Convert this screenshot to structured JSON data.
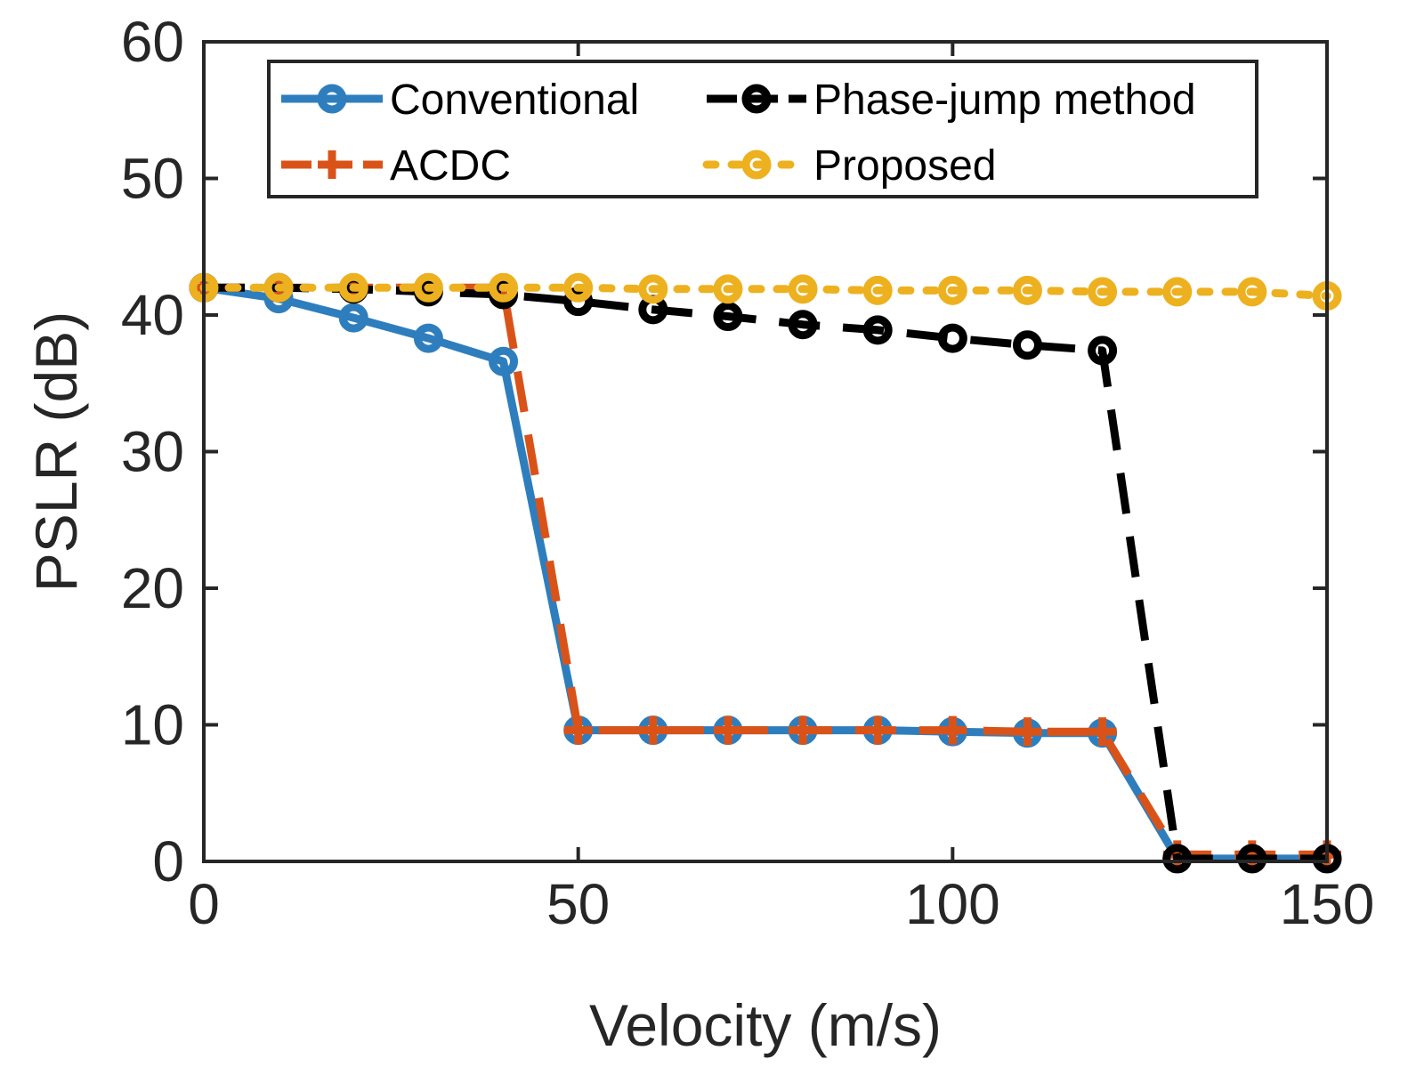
{
  "chart_data": {
    "type": "line",
    "title": "",
    "xlabel": "Velocity (m/s)",
    "ylabel": "PSLR (dB)",
    "xlim": [
      0,
      150
    ],
    "ylim": [
      0,
      60
    ],
    "xticks": [
      0,
      50,
      100,
      150
    ],
    "yticks": [
      0,
      10,
      20,
      30,
      40,
      50,
      60
    ],
    "grid": false,
    "legend_position": "top",
    "x": [
      0,
      10,
      20,
      30,
      40,
      50,
      60,
      70,
      80,
      90,
      100,
      110,
      120,
      130,
      140,
      150
    ],
    "series": [
      {
        "name": "Conventional",
        "color": "#2E7EBE",
        "line_style": "solid",
        "marker": "circle",
        "values": [
          42.0,
          41.2,
          39.8,
          38.3,
          36.6,
          9.6,
          9.6,
          9.6,
          9.6,
          9.6,
          9.5,
          9.4,
          9.4,
          0.2,
          0.2,
          0.2
        ]
      },
      {
        "name": "ACDC",
        "color": "#D95319",
        "line_style": "dashed",
        "marker": "plus",
        "values": [
          42.0,
          42.0,
          42.0,
          42.0,
          42.0,
          9.6,
          9.6,
          9.6,
          9.6,
          9.6,
          9.6,
          9.5,
          9.5,
          0.5,
          0.5,
          0.5
        ]
      },
      {
        "name": "Phase-jump method",
        "color": "#000000",
        "line_style": "dashed",
        "marker": "circle",
        "values": [
          42.0,
          42.0,
          41.9,
          41.7,
          41.5,
          41.0,
          40.4,
          39.9,
          39.3,
          38.9,
          38.3,
          37.8,
          37.4,
          0.2,
          0.2,
          0.2
        ]
      },
      {
        "name": "Proposed",
        "color": "#EDB120",
        "line_style": "dotted",
        "marker": "circle",
        "values": [
          42.0,
          42.0,
          42.0,
          42.0,
          42.0,
          42.0,
          41.9,
          41.9,
          41.9,
          41.8,
          41.8,
          41.8,
          41.7,
          41.7,
          41.7,
          41.4
        ]
      }
    ]
  }
}
